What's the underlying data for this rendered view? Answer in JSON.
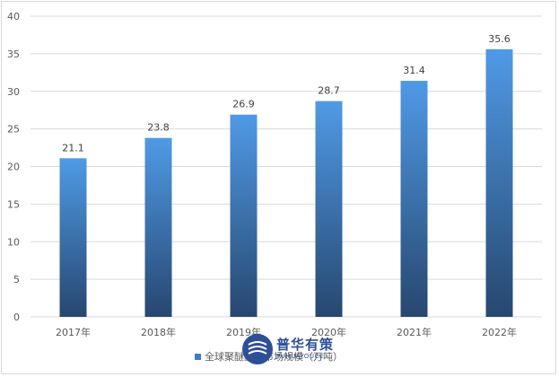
{
  "chart_data": {
    "type": "bar",
    "categories": [
      "2017年",
      "2018年",
      "2019年",
      "2020年",
      "2021年",
      "2022年"
    ],
    "series": [
      {
        "name": "全球聚醚醚酮市场规模（万吨）",
        "values": [
          21.1,
          23.8,
          26.9,
          28.7,
          31.4,
          35.6
        ]
      }
    ],
    "data_labels": [
      "21.1",
      "23.8",
      "26.9",
      "28.7",
      "31.4",
      "35.6"
    ],
    "ylim": [
      0,
      40
    ],
    "yticks": [
      0,
      5,
      10,
      15,
      20,
      25,
      30,
      35,
      40
    ],
    "grid": true,
    "legend_position": "bottom",
    "colors": {
      "bar_top": "#4f9ae6",
      "bar_bottom": "#27476f",
      "grid": "#d9d9d9",
      "legend_swatch": "#3f7cc4"
    }
  },
  "legend": {
    "label": "全球聚醚醚酮市场规模（万吨）"
  },
  "watermark": {
    "name": "普华有策",
    "subtitle": "PUHUAYOUCE"
  }
}
